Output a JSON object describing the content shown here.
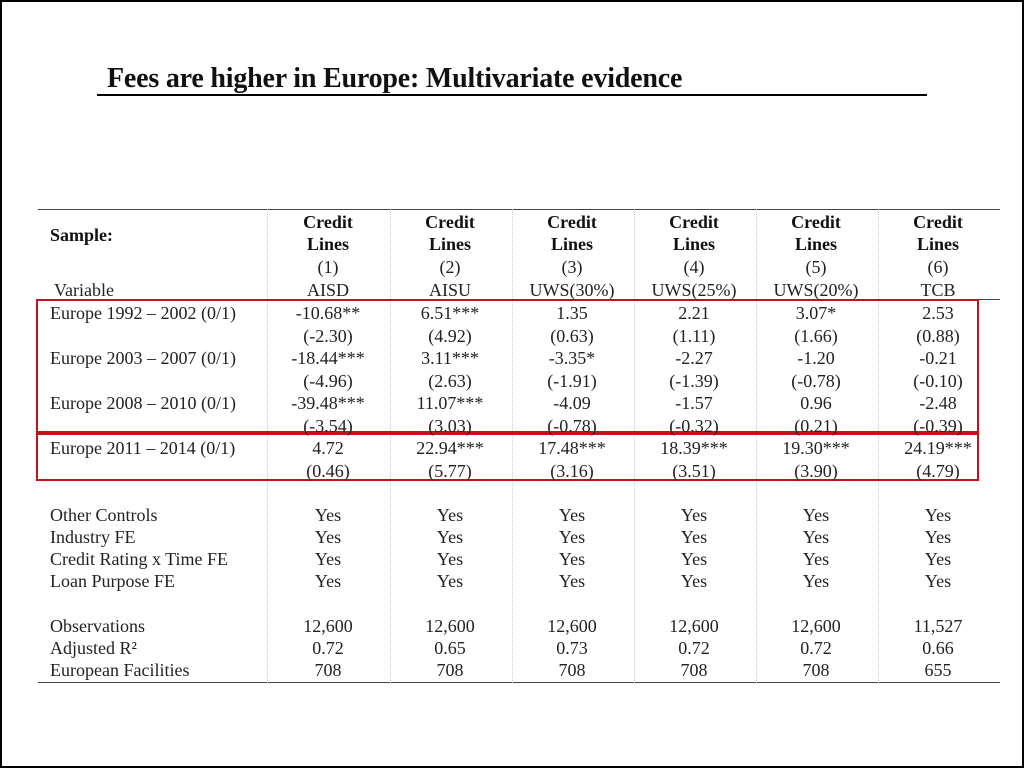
{
  "title": "Fees are higher in Europe: Multivariate evidence",
  "colors": {
    "highlight_border": "#c0141a",
    "text": "#222222"
  },
  "table": {
    "sample_label": "Sample:",
    "variable_label": "Variable",
    "columns": [
      {
        "line1": "Credit",
        "line2": "Lines",
        "num": "(1)",
        "measure": "AISD"
      },
      {
        "line1": "Credit",
        "line2": "Lines",
        "num": "(2)",
        "measure": "AISU"
      },
      {
        "line1": "Credit",
        "line2": "Lines",
        "num": "(3)",
        "measure": "UWS(30%)"
      },
      {
        "line1": "Credit",
        "line2": "Lines",
        "num": "(4)",
        "measure": "UWS(25%)"
      },
      {
        "line1": "Credit",
        "line2": "Lines",
        "num": "(5)",
        "measure": "UWS(20%)"
      },
      {
        "line1": "Credit",
        "line2": "Lines",
        "num": "(6)",
        "measure": "TCB"
      }
    ],
    "rows": [
      {
        "label": "Europe 1992 – 2002 (0/1)",
        "coef": [
          "-10.68**",
          "6.51***",
          "1.35",
          "2.21",
          "3.07*",
          "2.53"
        ],
        "t": [
          "(-2.30)",
          "(4.92)",
          "(0.63)",
          "(1.11)",
          "(1.66)",
          "(0.88)"
        ]
      },
      {
        "label": "Europe 2003 – 2007 (0/1)",
        "coef": [
          "-18.44***",
          "3.11***",
          "-3.35*",
          "-2.27",
          "-1.20",
          "-0.21"
        ],
        "t": [
          "(-4.96)",
          "(2.63)",
          "(-1.91)",
          "(-1.39)",
          "(-0.78)",
          "(-0.10)"
        ]
      },
      {
        "label": "Europe 2008 – 2010 (0/1)",
        "coef": [
          "-39.48***",
          "11.07***",
          "-4.09",
          "-1.57",
          "0.96",
          "-2.48"
        ],
        "t": [
          "(-3.54)",
          "(3.03)",
          "(-0.78)",
          "(-0.32)",
          "(0.21)",
          "(-0.39)"
        ]
      },
      {
        "label": "Europe 2011 – 2014 (0/1)",
        "coef": [
          "4.72",
          "22.94***",
          "17.48***",
          "18.39***",
          "19.30***",
          "24.19***"
        ],
        "t": [
          "(0.46)",
          "(5.77)",
          "(3.16)",
          "(3.51)",
          "(3.90)",
          "(4.79)"
        ]
      }
    ],
    "controls": [
      {
        "label": "Other Controls",
        "values": [
          "Yes",
          "Yes",
          "Yes",
          "Yes",
          "Yes",
          "Yes"
        ]
      },
      {
        "label": "Industry FE",
        "values": [
          "Yes",
          "Yes",
          "Yes",
          "Yes",
          "Yes",
          "Yes"
        ]
      },
      {
        "label": "Credit Rating x Time FE",
        "values": [
          "Yes",
          "Yes",
          "Yes",
          "Yes",
          "Yes",
          "Yes"
        ]
      },
      {
        "label": "Loan Purpose FE",
        "values": [
          "Yes",
          "Yes",
          "Yes",
          "Yes",
          "Yes",
          "Yes"
        ]
      }
    ],
    "stats": [
      {
        "label": "Observations",
        "values": [
          "12,600",
          "12,600",
          "12,600",
          "12,600",
          "12,600",
          "11,527"
        ]
      },
      {
        "label": "Adjusted R²",
        "values": [
          "0.72",
          "0.65",
          "0.73",
          "0.72",
          "0.72",
          "0.66"
        ]
      },
      {
        "label": "European Facilities",
        "values": [
          "708",
          "708",
          "708",
          "708",
          "708",
          "655"
        ]
      }
    ]
  }
}
